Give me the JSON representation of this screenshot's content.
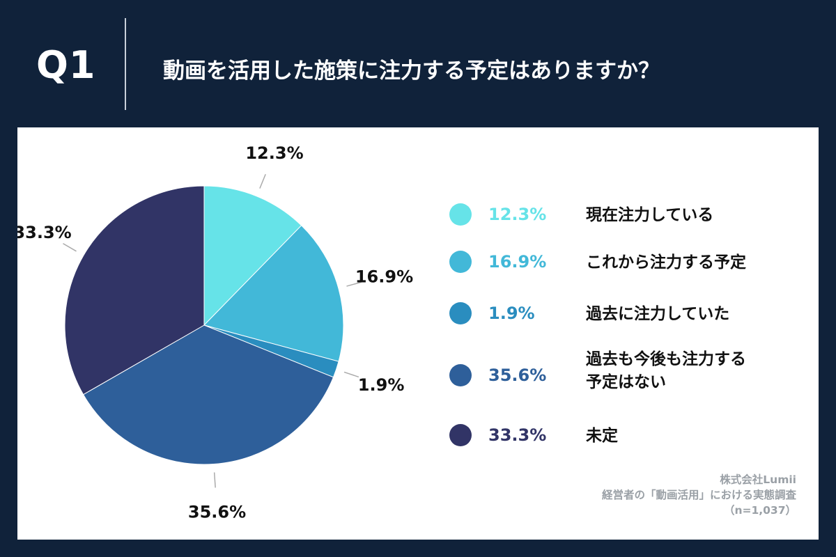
{
  "header": {
    "q_label": "Q1",
    "question": "動画を活用した施策に注力する予定はありますか？"
  },
  "chart_data": {
    "type": "pie",
    "slices": [
      {
        "label": "現在注力している",
        "value": 12.3,
        "display": "12.3%",
        "color": "#66e3e8"
      },
      {
        "label": "これから注力する予定",
        "value": 16.9,
        "display": "16.9%",
        "color": "#42b8d8"
      },
      {
        "label": "過去に注力していた",
        "value": 1.9,
        "display": "1.9%",
        "color": "#2a8dbf"
      },
      {
        "label": "過去も今後も注力する予定はない",
        "label_lines": [
          "過去も今後も注力する",
          "予定はない"
        ],
        "value": 35.6,
        "display": "35.6%",
        "color": "#2e5f9a"
      },
      {
        "label": "未定",
        "value": 33.3,
        "display": "33.3%",
        "color": "#313466"
      }
    ],
    "legend_position": "right"
  },
  "credit": {
    "line1": "株式会社Lumii",
    "line2": "経営者の「動画活用」における実態調査",
    "line3": "（n=1,037）"
  }
}
